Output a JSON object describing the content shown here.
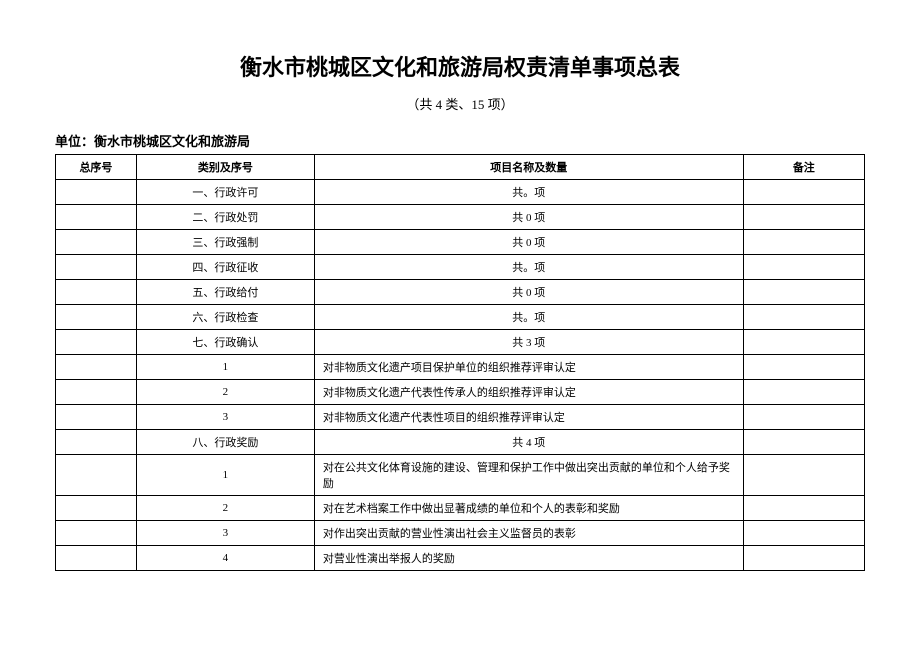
{
  "title": "衡水市桃城区文化和旅游局权责清单事项总表",
  "subtitle": "（共 4 类、15 项）",
  "unit_label": "单位：衡水市桃城区文化和旅游局",
  "headers": {
    "seq": "总序号",
    "category": "类别及序号",
    "name": "项目名称及数量",
    "note": "备注"
  },
  "rows": [
    {
      "seq": "",
      "category": "一、行政许可",
      "name": "共。项",
      "name_align": "center",
      "note": ""
    },
    {
      "seq": "",
      "category": "二、行政处罚",
      "name": "共 0 项",
      "name_align": "center",
      "note": ""
    },
    {
      "seq": "",
      "category": "三、行政强制",
      "name": "共 0 项",
      "name_align": "center",
      "note": ""
    },
    {
      "seq": "",
      "category": "四、行政征收",
      "name": "共。项",
      "name_align": "center",
      "note": ""
    },
    {
      "seq": "",
      "category": "五、行政给付",
      "name": "共 0 项",
      "name_align": "center",
      "note": ""
    },
    {
      "seq": "",
      "category": "六、行政检查",
      "name": "共。项",
      "name_align": "center",
      "note": ""
    },
    {
      "seq": "",
      "category": "七、行政确认",
      "name": "共 3 项",
      "name_align": "center",
      "note": ""
    },
    {
      "seq": "",
      "category": "1",
      "name": "对非物质文化遗产项目保护单位的组织推荐评审认定",
      "name_align": "left",
      "note": ""
    },
    {
      "seq": "",
      "category": "2",
      "name": "对非物质文化遗产代表性传承人的组织推荐评审认定",
      "name_align": "left",
      "note": ""
    },
    {
      "seq": "",
      "category": "3",
      "name": "对非物质文化遗产代表性项目的组织推荐评审认定",
      "name_align": "left",
      "note": ""
    },
    {
      "seq": "",
      "category": "八、行政奖励",
      "name": "共 4 项",
      "name_align": "center",
      "note": ""
    },
    {
      "seq": "",
      "category": "1",
      "name": "对在公共文化体育设施的建设、管理和保护工作中做出突出贡献的单位和个人给予奖励",
      "name_align": "left",
      "note": ""
    },
    {
      "seq": "",
      "category": "2",
      "name": "对在艺术档案工作中做出显著成绩的单位和个人的表彰和奖励",
      "name_align": "left",
      "note": ""
    },
    {
      "seq": "",
      "category": "3",
      "name": "对作出突出贡献的营业性演出社会主义监督员的表彰",
      "name_align": "left",
      "note": ""
    },
    {
      "seq": "",
      "category": "4",
      "name": "对营业性演出举报人的奖励",
      "name_align": "left",
      "note": ""
    }
  ]
}
